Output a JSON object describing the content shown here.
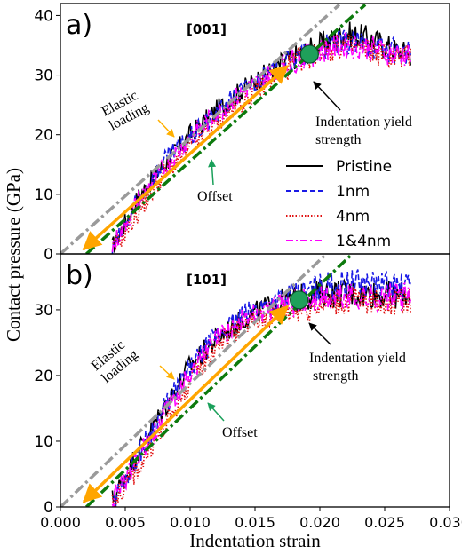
{
  "chart_data": {
    "type": "line",
    "xlabel": "Indentation strain",
    "ylabel": "Contact pressure (GPa)",
    "xlim": [
      0.0,
      0.03
    ],
    "x_ticks": [
      "0.000",
      "0.005",
      "0.010",
      "0.015",
      "0.020",
      "0.025",
      "0.030"
    ],
    "legend_position": "right (inside panel a)",
    "series_styles": [
      {
        "name": "Pristine",
        "color": "#000000",
        "dash": "solid"
      },
      {
        "name": "1nm",
        "color": "#1a1ae6",
        "dash": "dashed"
      },
      {
        "name": "4nm",
        "color": "#e01010",
        "dash": "dotted"
      },
      {
        "name": "1&4nm",
        "color": "#ff00ff",
        "dash": "dashdot"
      }
    ],
    "panels": [
      {
        "panel_label": "a)",
        "orientation": "[001]",
        "ylim": [
          0,
          42
        ],
        "y_ticks": [
          "0",
          "10",
          "20",
          "30",
          "40"
        ],
        "gray_line": {
          "x": [
            0.0,
            0.0215
          ],
          "y": [
            0,
            41.8
          ]
        },
        "offset_line": {
          "x": [
            0.002,
            0.0235
          ],
          "y": [
            0,
            41.8
          ]
        },
        "elastic_arrow": {
          "x": [
            0.0018,
            0.0175
          ],
          "y": [
            0.8,
            31.5
          ]
        },
        "yield_point": {
          "x": 0.0192,
          "y": 33.5
        },
        "series": [
          {
            "name": "Pristine",
            "x": [
              0.004,
              0.006,
              0.008,
              0.01,
              0.012,
              0.014,
              0.016,
              0.018,
              0.02,
              0.022,
              0.024,
              0.026,
              0.027
            ],
            "y": [
              1,
              9.5,
              15,
              20,
              24,
              27.5,
              30.5,
              33,
              35,
              37,
              36,
              34,
              33.5
            ]
          },
          {
            "name": "1nm",
            "x": [
              0.004,
              0.006,
              0.008,
              0.01,
              0.012,
              0.014,
              0.016,
              0.018,
              0.02,
              0.022,
              0.024,
              0.026,
              0.027
            ],
            "y": [
              0.5,
              9,
              15.5,
              19.5,
              23.5,
              27.5,
              30,
              32.5,
              34.5,
              35.5,
              35,
              34,
              33.5
            ]
          },
          {
            "name": "4nm",
            "x": [
              0.004,
              0.006,
              0.008,
              0.01,
              0.012,
              0.014,
              0.016,
              0.018,
              0.02,
              0.022,
              0.024,
              0.026,
              0.027
            ],
            "y": [
              0.5,
              7,
              13.5,
              18,
              22,
              25.5,
              29,
              32,
              34,
              35,
              34,
              33,
              33
            ]
          },
          {
            "name": "1&4nm",
            "x": [
              0.004,
              0.006,
              0.008,
              0.01,
              0.012,
              0.014,
              0.016,
              0.018,
              0.02,
              0.022,
              0.024,
              0.026,
              0.027
            ],
            "y": [
              1,
              9,
              14.5,
              19.5,
              23.5,
              27,
              30,
              32.5,
              34,
              35,
              34.5,
              33.5,
              33.5
            ]
          }
        ],
        "annotations": {
          "elastic": "Elastic\nloading",
          "offset": "Offset",
          "yield": "Indentation yield\nstrength"
        }
      },
      {
        "panel_label": "b)",
        "orientation": "[101]",
        "ylim": [
          0,
          38.5
        ],
        "y_ticks": [
          "0",
          "10",
          "20",
          "30"
        ],
        "gray_line": {
          "x": [
            0.0,
            0.0205
          ],
          "y": [
            0,
            38.5
          ]
        },
        "offset_line": {
          "x": [
            0.002,
            0.0225
          ],
          "y": [
            0,
            38.5
          ]
        },
        "elastic_arrow": {
          "x": [
            0.0018,
            0.0175
          ],
          "y": [
            0.8,
            30.5
          ]
        },
        "yield_point": {
          "x": 0.0184,
          "y": 31.5
        },
        "series": [
          {
            "name": "Pristine",
            "x": [
              0.004,
              0.006,
              0.008,
              0.01,
              0.012,
              0.014,
              0.016,
              0.018,
              0.02,
              0.022,
              0.024,
              0.026,
              0.027
            ],
            "y": [
              1,
              8.5,
              15,
              21.5,
              25.5,
              28.5,
              30.5,
              31.5,
              32.5,
              32.5,
              32.5,
              32,
              32.5
            ]
          },
          {
            "name": "1nm",
            "x": [
              0.004,
              0.006,
              0.008,
              0.01,
              0.012,
              0.014,
              0.016,
              0.018,
              0.02,
              0.022,
              0.024,
              0.026,
              0.027
            ],
            "y": [
              0.5,
              8,
              15,
              21,
              26,
              29,
              31,
              32,
              33.5,
              34,
              34,
              33.5,
              33.5
            ]
          },
          {
            "name": "4nm",
            "x": [
              0.004,
              0.006,
              0.008,
              0.01,
              0.012,
              0.014,
              0.016,
              0.018,
              0.02,
              0.022,
              0.024,
              0.026,
              0.027
            ],
            "y": [
              0.5,
              6,
              12,
              19,
              24.5,
              27.5,
              29,
              30,
              31,
              31.5,
              31.5,
              31,
              31.5
            ]
          },
          {
            "name": "1&4nm",
            "x": [
              0.004,
              0.006,
              0.008,
              0.01,
              0.012,
              0.014,
              0.016,
              0.018,
              0.02,
              0.022,
              0.024,
              0.026,
              0.027
            ],
            "y": [
              1,
              7.5,
              14,
              20.5,
              25.5,
              28.5,
              30,
              31,
              31.5,
              32,
              32,
              32,
              32
            ]
          }
        ],
        "annotations": {
          "elastic": "Elastic\nloading",
          "offset": "Offset",
          "yield": "Indentation yield\n strength"
        }
      }
    ]
  }
}
